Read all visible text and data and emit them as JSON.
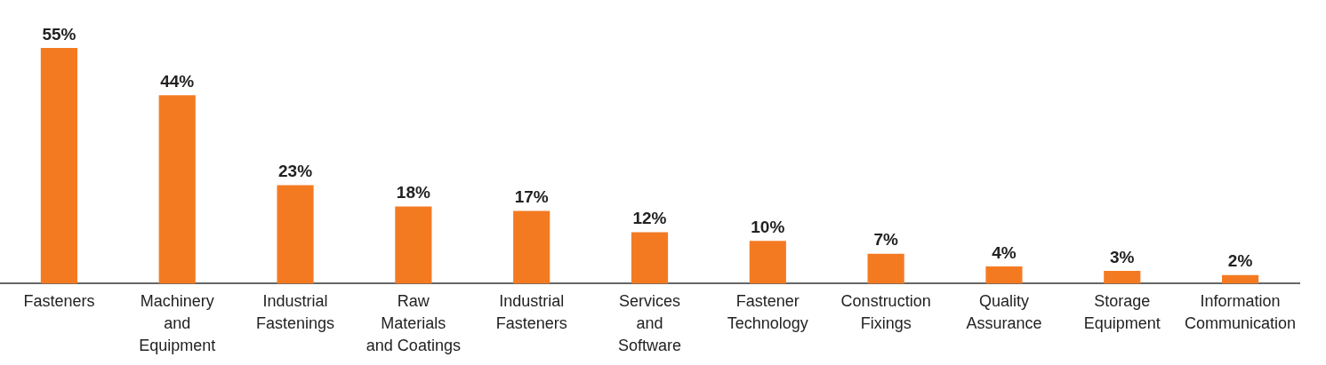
{
  "chart_data": {
    "type": "bar",
    "categories": [
      "Fasteners",
      "Machinery\nand\nEquipment",
      "Industrial\nFastenings",
      "Raw\nMaterials\nand Coatings",
      "Industrial\nFasteners",
      "Services\nand\nSoftware",
      "Fastener\nTechnology",
      "Construction\nFixings",
      "Quality\nAssurance",
      "Storage\nEquipment",
      "Information\nCommunication"
    ],
    "values": [
      55,
      44,
      23,
      18,
      17,
      12,
      10,
      7,
      4,
      3,
      2
    ],
    "value_labels": [
      "55%",
      "44%",
      "23%",
      "18%",
      "17%",
      "12%",
      "10%",
      "7%",
      "4%",
      "3%",
      "2%"
    ],
    "color": "#f47a22",
    "grid": false,
    "legend": false
  }
}
